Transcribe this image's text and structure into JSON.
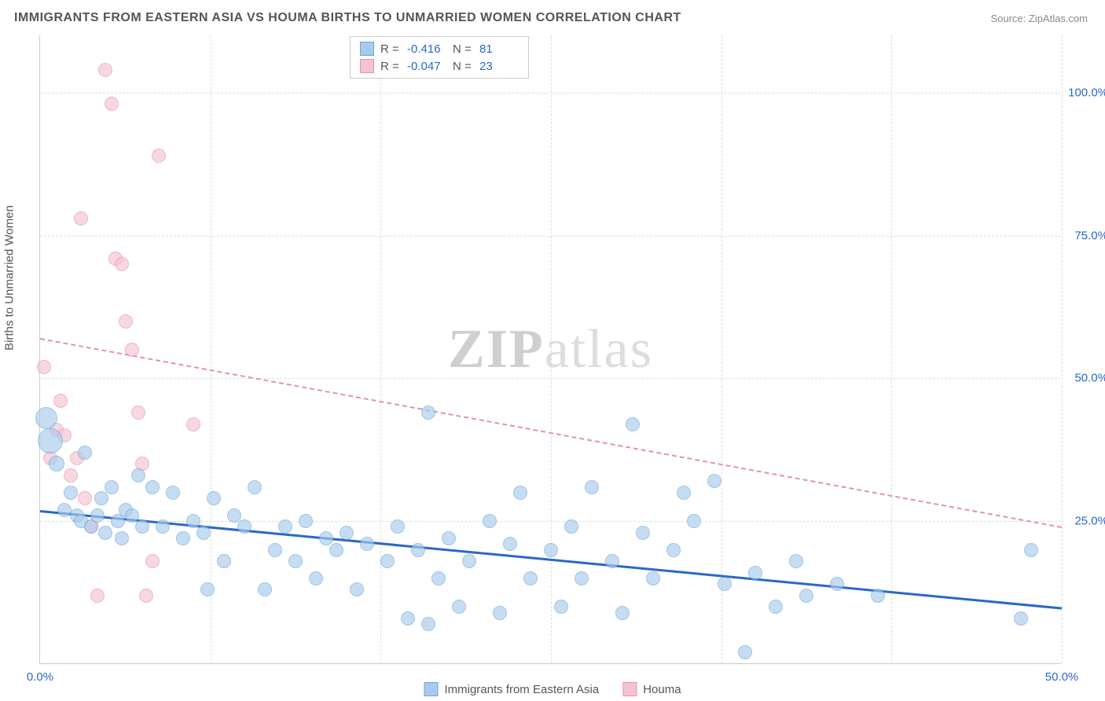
{
  "title": "IMMIGRANTS FROM EASTERN ASIA VS HOUMA BIRTHS TO UNMARRIED WOMEN CORRELATION CHART",
  "source_label": "Source: ",
  "source_name": "ZipAtlas.com",
  "yaxis_title": "Births to Unmarried Women",
  "watermark_a": "ZIP",
  "watermark_b": "atlas",
  "chart": {
    "type": "scatter",
    "background_color": "#ffffff",
    "grid_color": "#dddddd",
    "axis_color": "#cccccc",
    "tick_label_color": "#2968c8",
    "text_color": "#555555",
    "xlim": [
      0,
      50
    ],
    "ylim": [
      0,
      110
    ],
    "xticks": [
      0,
      8.33,
      16.67,
      25,
      33.33,
      41.67,
      50
    ],
    "xtick_labels_shown": {
      "0": "0.0%",
      "50": "50.0%"
    },
    "yticks": [
      25,
      50,
      75,
      100
    ],
    "ytick_labels": [
      "25.0%",
      "50.0%",
      "75.0%",
      "100.0%"
    ],
    "series": [
      {
        "name": "Immigrants from Eastern Asia",
        "fill_color": "#a9cbeb",
        "stroke_color": "#6ba5dd",
        "fill_opacity": 0.65,
        "stroke_width": 1.5,
        "marker_radius": 9,
        "R": "-0.416",
        "N": "81",
        "trend": {
          "x1": 0,
          "y1": 27,
          "x2": 50,
          "y2": 10,
          "color": "#2968c8",
          "width": 3,
          "dash": "solid"
        },
        "points": [
          [
            0.3,
            43,
            14
          ],
          [
            0.5,
            39,
            16
          ],
          [
            0.8,
            35,
            10
          ],
          [
            1.2,
            27,
            9
          ],
          [
            1.5,
            30,
            9
          ],
          [
            1.8,
            26,
            9
          ],
          [
            2.0,
            25,
            9
          ],
          [
            2.2,
            37,
            9
          ],
          [
            2.5,
            24,
            9
          ],
          [
            2.8,
            26,
            9
          ],
          [
            3.0,
            29,
            9
          ],
          [
            3.2,
            23,
            9
          ],
          [
            3.5,
            31,
            9
          ],
          [
            3.8,
            25,
            9
          ],
          [
            4.0,
            22,
            9
          ],
          [
            4.2,
            27,
            9
          ],
          [
            4.5,
            26,
            9
          ],
          [
            4.8,
            33,
            9
          ],
          [
            5.0,
            24,
            9
          ],
          [
            5.5,
            31,
            9
          ],
          [
            6.0,
            24,
            9
          ],
          [
            6.5,
            30,
            9
          ],
          [
            7.0,
            22,
            9
          ],
          [
            7.5,
            25,
            9
          ],
          [
            8.0,
            23,
            9
          ],
          [
            8.2,
            13,
            9
          ],
          [
            8.5,
            29,
            9
          ],
          [
            9.0,
            18,
            9
          ],
          [
            9.5,
            26,
            9
          ],
          [
            10.0,
            24,
            9
          ],
          [
            10.5,
            31,
            9
          ],
          [
            11.0,
            13,
            9
          ],
          [
            11.5,
            20,
            9
          ],
          [
            12.0,
            24,
            9
          ],
          [
            12.5,
            18,
            9
          ],
          [
            13.0,
            25,
            9
          ],
          [
            13.5,
            15,
            9
          ],
          [
            14.0,
            22,
            9
          ],
          [
            14.5,
            20,
            9
          ],
          [
            15.0,
            23,
            9
          ],
          [
            15.5,
            13,
            9
          ],
          [
            16.0,
            21,
            9
          ],
          [
            17.0,
            18,
            9
          ],
          [
            17.5,
            24,
            9
          ],
          [
            18.0,
            8,
            9
          ],
          [
            18.5,
            20,
            9
          ],
          [
            19.0,
            44,
            9
          ],
          [
            19.5,
            15,
            9
          ],
          [
            20.0,
            22,
            9
          ],
          [
            20.5,
            10,
            9
          ],
          [
            21.0,
            18,
            9
          ],
          [
            22.0,
            25,
            9
          ],
          [
            22.5,
            9,
            9
          ],
          [
            23.0,
            21,
            9
          ],
          [
            23.5,
            30,
            9
          ],
          [
            24.0,
            15,
            9
          ],
          [
            25.0,
            20,
            9
          ],
          [
            25.5,
            10,
            9
          ],
          [
            26.0,
            24,
            9
          ],
          [
            26.5,
            15,
            9
          ],
          [
            27.0,
            31,
            9
          ],
          [
            28.0,
            18,
            9
          ],
          [
            28.5,
            9,
            9
          ],
          [
            29.0,
            42,
            9
          ],
          [
            29.5,
            23,
            9
          ],
          [
            30.0,
            15,
            9
          ],
          [
            31.0,
            20,
            9
          ],
          [
            31.5,
            30,
            9
          ],
          [
            32.0,
            25,
            9
          ],
          [
            33.0,
            32,
            9
          ],
          [
            33.5,
            14,
            9
          ],
          [
            34.5,
            2,
            9
          ],
          [
            35.0,
            16,
            9
          ],
          [
            36.0,
            10,
            9
          ],
          [
            37.0,
            18,
            9
          ],
          [
            37.5,
            12,
            9
          ],
          [
            39.0,
            14,
            9
          ],
          [
            41.0,
            12,
            9
          ],
          [
            48.5,
            20,
            9
          ],
          [
            48.0,
            8,
            9
          ],
          [
            19.0,
            7,
            9
          ]
        ]
      },
      {
        "name": "Houma",
        "fill_color": "#f4c3d0",
        "stroke_color": "#e690ab",
        "fill_opacity": 0.65,
        "stroke_width": 1.5,
        "marker_radius": 9,
        "R": "-0.047",
        "N": "23",
        "trend": {
          "x1": 0,
          "y1": 57,
          "x2": 50,
          "y2": 24,
          "color": "#e690ab",
          "width": 2,
          "dash": "dashed"
        },
        "points": [
          [
            0.2,
            52,
            9
          ],
          [
            0.5,
            36,
            9
          ],
          [
            0.8,
            41,
            9
          ],
          [
            1.0,
            46,
            9
          ],
          [
            1.2,
            40,
            9
          ],
          [
            1.5,
            33,
            9
          ],
          [
            1.8,
            36,
            9
          ],
          [
            2.0,
            78,
            9
          ],
          [
            2.2,
            29,
            9
          ],
          [
            2.5,
            24,
            9
          ],
          [
            2.8,
            12,
            9
          ],
          [
            3.2,
            104,
            9
          ],
          [
            3.5,
            98,
            9
          ],
          [
            3.7,
            71,
            9
          ],
          [
            4.0,
            70,
            9
          ],
          [
            4.2,
            60,
            9
          ],
          [
            4.5,
            55,
            9
          ],
          [
            4.8,
            44,
            9
          ],
          [
            5.0,
            35,
            9
          ],
          [
            5.2,
            12,
            9
          ],
          [
            5.5,
            18,
            9
          ],
          [
            5.8,
            89,
            9
          ],
          [
            7.5,
            42,
            9
          ]
        ]
      }
    ]
  },
  "legend_stats_labels": {
    "R": "R =",
    "N": "N ="
  },
  "bottom_legend_series1": "Immigrants from Eastern Asia",
  "bottom_legend_series2": "Houma"
}
